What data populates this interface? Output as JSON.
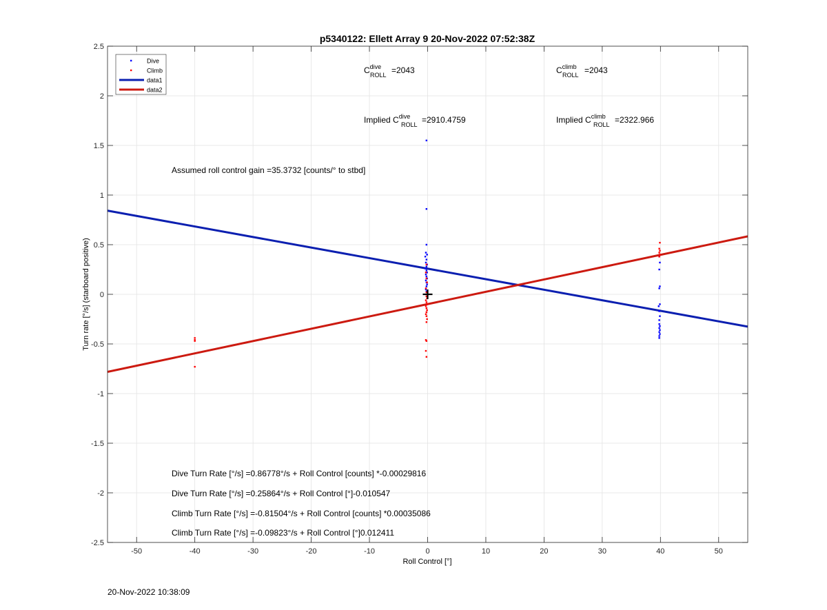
{
  "timestamp": "20-Nov-2022 10:38:09",
  "chart_data": {
    "type": "scatter",
    "title": "p5340122: Ellett Array 9 20-Nov-2022 07:52:38Z",
    "xlabel": "Roll Control [°]",
    "ylabel": "Turn rate [°/s] (starboard positive)",
    "xlim": [
      -55,
      55
    ],
    "ylim": [
      -2.5,
      2.5
    ],
    "xticks": [
      -50,
      -40,
      -30,
      -20,
      -10,
      0,
      10,
      20,
      30,
      40,
      50
    ],
    "yticks": [
      -2.5,
      -2,
      -1.5,
      -1,
      -0.5,
      0,
      0.5,
      1,
      1.5,
      2,
      2.5
    ],
    "grid": true,
    "legend_position": "top-left",
    "legend": [
      {
        "label": "Dive",
        "kind": "marker",
        "color": "#0000ff"
      },
      {
        "label": "Climb",
        "kind": "marker",
        "color": "#ff0000"
      },
      {
        "label": "data1",
        "kind": "line",
        "color": "#0b1fb0"
      },
      {
        "label": "data2",
        "kind": "line",
        "color": "#cc1a10"
      }
    ],
    "series": [
      {
        "name": "Dive",
        "kind": "scatter",
        "color": "#0000ff",
        "points": [
          [
            -0.2,
            1.55
          ],
          [
            -0.2,
            0.86
          ],
          [
            -0.2,
            0.5
          ],
          [
            -0.3,
            0.42
          ],
          [
            -0.1,
            0.4
          ],
          [
            -0.4,
            0.38
          ],
          [
            -0.2,
            0.35
          ],
          [
            -0.3,
            0.32
          ],
          [
            -0.1,
            0.3
          ],
          [
            -0.2,
            0.28
          ],
          [
            -0.4,
            0.26
          ],
          [
            -0.2,
            0.24
          ],
          [
            -0.1,
            0.22
          ],
          [
            -0.3,
            0.2
          ],
          [
            -0.2,
            0.18
          ],
          [
            -0.1,
            0.16
          ],
          [
            -0.3,
            0.14
          ],
          [
            -0.2,
            0.12
          ],
          [
            -0.1,
            0.1
          ],
          [
            -0.2,
            0.08
          ],
          [
            -0.3,
            0.05
          ],
          [
            -0.2,
            0.03
          ],
          [
            39.8,
            0.38
          ],
          [
            39.9,
            0.32
          ],
          [
            39.8,
            0.25
          ],
          [
            39.9,
            0.08
          ],
          [
            39.8,
            0.06
          ],
          [
            39.9,
            -0.1
          ],
          [
            39.7,
            -0.12
          ],
          [
            39.8,
            -0.17
          ],
          [
            39.9,
            -0.22
          ],
          [
            39.8,
            -0.26
          ],
          [
            39.8,
            -0.3
          ],
          [
            39.9,
            -0.32
          ],
          [
            39.8,
            -0.34
          ],
          [
            39.9,
            -0.36
          ],
          [
            39.8,
            -0.38
          ],
          [
            39.9,
            -0.4
          ],
          [
            39.8,
            -0.42
          ],
          [
            39.8,
            -0.44
          ]
        ]
      },
      {
        "name": "Climb",
        "kind": "scatter",
        "color": "#ff0000",
        "points": [
          [
            -40,
            -0.44
          ],
          [
            -40,
            -0.46
          ],
          [
            -40,
            -0.47
          ],
          [
            -40,
            -0.73
          ],
          [
            -0.2,
            0.3
          ],
          [
            -0.3,
            0.22
          ],
          [
            -0.2,
            0.16
          ],
          [
            -0.1,
            0.12
          ],
          [
            -0.3,
            0.06
          ],
          [
            -0.2,
            0.02
          ],
          [
            -0.2,
            -0.02
          ],
          [
            -0.1,
            -0.04
          ],
          [
            -0.3,
            -0.06
          ],
          [
            -0.2,
            -0.08
          ],
          [
            -0.1,
            -0.1
          ],
          [
            -0.3,
            -0.12
          ],
          [
            -0.2,
            -0.14
          ],
          [
            -0.1,
            -0.16
          ],
          [
            -0.2,
            -0.18
          ],
          [
            -0.3,
            -0.2
          ],
          [
            -0.2,
            -0.22
          ],
          [
            -0.1,
            -0.25
          ],
          [
            -0.2,
            -0.28
          ],
          [
            -0.3,
            -0.46
          ],
          [
            -0.2,
            -0.47
          ],
          [
            -0.3,
            -0.57
          ],
          [
            -0.2,
            -0.63
          ],
          [
            39.9,
            0.52
          ],
          [
            39.8,
            0.46
          ],
          [
            39.9,
            0.44
          ],
          [
            39.8,
            0.42
          ],
          [
            39.9,
            0.4
          ],
          [
            39.8,
            0.38
          ]
        ]
      },
      {
        "name": "data1",
        "kind": "line",
        "color": "#0b1fb0",
        "points": [
          [
            -55,
            0.8428
          ],
          [
            55,
            -0.3255
          ]
        ]
      },
      {
        "name": "data2",
        "kind": "line",
        "color": "#cc1a10",
        "points": [
          [
            -55,
            -0.7812
          ],
          [
            55,
            0.584
          ]
        ]
      },
      {
        "name": "",
        "kind": "marker-plus",
        "color": "#000000",
        "points": [
          [
            0,
            0
          ]
        ]
      }
    ],
    "annotations": {
      "c_dive": {
        "base": "C",
        "sup": "dive",
        "sub": "ROLL",
        "value": "=2043",
        "prefix": ""
      },
      "c_climb": {
        "base": "C",
        "sup": "climb",
        "sub": "ROLL",
        "value": "=2043",
        "prefix": ""
      },
      "implied_dive": {
        "base": "C",
        "sup": "dive",
        "sub": "ROLL",
        "value": "=2910.4759",
        "prefix": "Implied "
      },
      "implied_climb": {
        "base": "C",
        "sup": "climb",
        "sub": "ROLL",
        "value": "=2322.966",
        "prefix": "Implied "
      },
      "gain": "Assumed roll control gain =35.3732 [counts/° to stbd]",
      "equations": [
        "Dive Turn Rate [°/s] =0.86778°/s + Roll Control [counts] *-0.00029816",
        "Dive Turn Rate [°/s] =0.25864°/s + Roll Control [°]-0.010547",
        "Climb Turn Rate [°/s] =-0.81504°/s + Roll Control [counts] *0.00035086",
        "Climb Turn Rate [°/s] =-0.09823°/s + Roll Control [°]0.012411"
      ]
    }
  }
}
